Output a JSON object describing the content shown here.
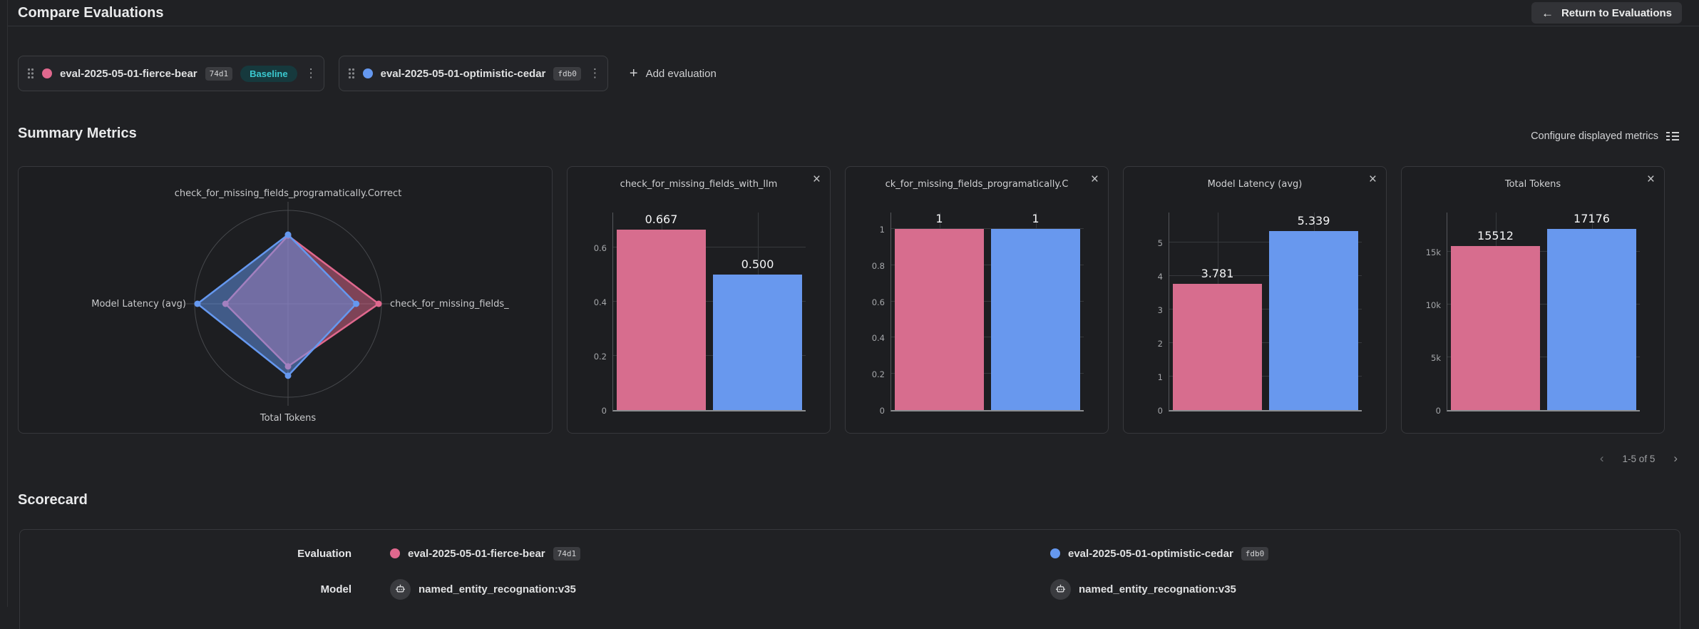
{
  "app": {
    "title": "Compare Evaluations"
  },
  "header": {
    "return_label": "Return to Evaluations"
  },
  "toolbar": {
    "add_label": "Add evaluation",
    "baseline_label": "Baseline"
  },
  "icons": {
    "arrow_left": "←",
    "kebab": "⋮",
    "plus": "+",
    "close": "×",
    "chevron_left": "‹",
    "chevron_right": "›"
  },
  "evaluations": [
    {
      "name": "eval-2025-05-01-fierce-bear",
      "hash": "74d1",
      "color": "#e0688e",
      "model": "named_entity_recognation:v35"
    },
    {
      "name": "eval-2025-05-01-optimistic-cedar",
      "hash": "fdb0",
      "color": "#6598ef",
      "model": "named_entity_recognation:v35"
    }
  ],
  "summary": {
    "title": "Summary Metrics",
    "configure_label": "Configure displayed metrics",
    "pagination": {
      "range": "1-5 of 5"
    }
  },
  "scorecard": {
    "title": "Scorecard",
    "evaluation_label": "Evaluation",
    "model_label": "Model"
  },
  "colors": {
    "pink": "#d76d8e",
    "blue": "#6898ee",
    "baseline_text": "#3bc9d0",
    "baseline_bg": "#16393d"
  },
  "chart_data": [
    {
      "type": "radar",
      "axes": [
        "check_for_missing_fields_programatically.Correct",
        "check_for_missing_fields_",
        "Total Tokens",
        "Model Latency (avg)"
      ],
      "axis_order": [
        "top",
        "right",
        "bottom",
        "left"
      ],
      "series": [
        {
          "name": "eval-2025-05-01-fierce-bear",
          "color": "#e0688e",
          "fractions": [
            0.73,
            0.97,
            0.67,
            0.67
          ]
        },
        {
          "name": "eval-2025-05-01-optimistic-cedar",
          "color": "#6598ef",
          "fractions": [
            0.74,
            0.73,
            0.77,
            0.97
          ]
        }
      ]
    },
    {
      "type": "bar",
      "title": "check_for_missing_fields_with_llm",
      "ymax": 0.73,
      "yticks": [
        {
          "value": 0,
          "label": "0"
        },
        {
          "value": 0.2,
          "label": "0.2"
        },
        {
          "value": 0.4,
          "label": "0.4"
        },
        {
          "value": 0.6,
          "label": "0.6"
        }
      ],
      "series": [
        {
          "name": "eval-2025-05-01-fierce-bear",
          "value": 0.667,
          "label": "0.667"
        },
        {
          "name": "eval-2025-05-01-optimistic-cedar",
          "value": 0.5,
          "label": "0.500"
        }
      ]
    },
    {
      "type": "bar",
      "title": "ck_for_missing_fields_programatically.C",
      "ymax": 1.09,
      "yticks": [
        {
          "value": 0,
          "label": "0"
        },
        {
          "value": 0.2,
          "label": "0.2"
        },
        {
          "value": 0.4,
          "label": "0.4"
        },
        {
          "value": 0.6,
          "label": "0.6"
        },
        {
          "value": 0.8,
          "label": "0.8"
        },
        {
          "value": 1,
          "label": "1"
        }
      ],
      "series": [
        {
          "name": "eval-2025-05-01-fierce-bear",
          "value": 1,
          "label": "1"
        },
        {
          "name": "eval-2025-05-01-optimistic-cedar",
          "value": 1,
          "label": "1"
        }
      ]
    },
    {
      "type": "bar",
      "title": "Model Latency (avg)",
      "ymax": 5.9,
      "yticks": [
        {
          "value": 0,
          "label": "0"
        },
        {
          "value": 1,
          "label": "1"
        },
        {
          "value": 2,
          "label": "2"
        },
        {
          "value": 3,
          "label": "3"
        },
        {
          "value": 4,
          "label": "4"
        },
        {
          "value": 5,
          "label": "5"
        }
      ],
      "series": [
        {
          "name": "eval-2025-05-01-fierce-bear",
          "value": 3.781,
          "label": "3.781"
        },
        {
          "name": "eval-2025-05-01-optimistic-cedar",
          "value": 5.339,
          "label": "5.339"
        }
      ]
    },
    {
      "type": "bar",
      "title": "Total Tokens",
      "ymax": 18700,
      "yticks": [
        {
          "value": 0,
          "label": "0"
        },
        {
          "value": 5000,
          "label": "5k"
        },
        {
          "value": 10000,
          "label": "10k"
        },
        {
          "value": 15000,
          "label": "15k"
        }
      ],
      "series": [
        {
          "name": "eval-2025-05-01-fierce-bear",
          "value": 15512,
          "label": "15512"
        },
        {
          "name": "eval-2025-05-01-optimistic-cedar",
          "value": 17176,
          "label": "17176"
        }
      ]
    }
  ]
}
